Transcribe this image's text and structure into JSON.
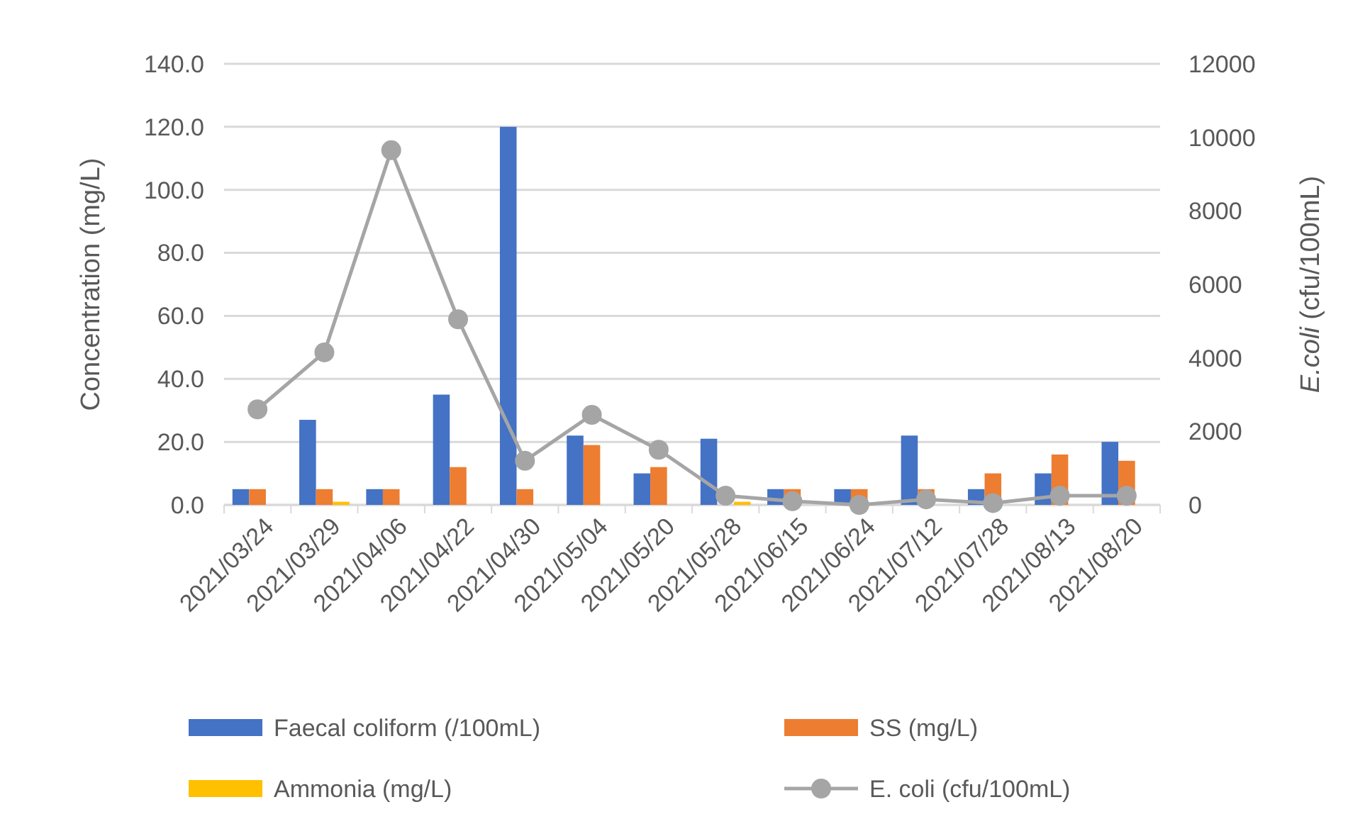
{
  "chart_data": {
    "type": "bar",
    "categories": [
      "2021/03/24",
      "2021/03/29",
      "2021/04/06",
      "2021/04/22",
      "2021/04/30",
      "2021/05/04",
      "2021/05/20",
      "2021/05/28",
      "2021/06/15",
      "2021/06/24",
      "2021/07/12",
      "2021/07/28",
      "2021/08/13",
      "2021/08/20"
    ],
    "ylabel": "Concentration (mg/L)",
    "y2label": "E.coli (cfu/100mL)",
    "ylim": [
      0,
      140
    ],
    "yticks": [
      {
        "value": 0,
        "label": "0.0"
      },
      {
        "value": 20,
        "label": "20.0"
      },
      {
        "value": 40,
        "label": "40.0"
      },
      {
        "value": 60,
        "label": "60.0"
      },
      {
        "value": 80,
        "label": "80.0"
      },
      {
        "value": 100,
        "label": "100.0"
      },
      {
        "value": 120,
        "label": "120.0"
      },
      {
        "value": 140,
        "label": "140.0"
      }
    ],
    "y2lim": [
      0,
      12000
    ],
    "y2ticks": [
      0,
      2000,
      4000,
      6000,
      8000,
      10000,
      12000
    ],
    "grid": "y",
    "legend": "bottom",
    "marker": "circle",
    "series": [
      {
        "name": "Faecal coliform (/100mL)",
        "color": "#4472c4",
        "values": [
          5,
          27,
          5,
          35,
          120,
          22,
          10,
          21,
          5,
          5,
          22,
          5,
          10,
          20
        ]
      },
      {
        "name": "SS (mg/L)",
        "color": "#ed7d31",
        "values": [
          5,
          5,
          5,
          12,
          5,
          19,
          12,
          null,
          5,
          5,
          5,
          10,
          16,
          14
        ]
      },
      {
        "name": "Ammonia (mg/L)",
        "color": "#ffc000",
        "values": [
          null,
          1,
          null,
          null,
          null,
          null,
          null,
          1,
          null,
          null,
          null,
          null,
          null,
          null
        ]
      },
      {
        "name": "E. coli (cfu/100mL)",
        "color": "#a5a5a5",
        "type": "line",
        "axis": "y2",
        "values": [
          2600,
          4150,
          9650,
          5050,
          1200,
          2450,
          1500,
          250,
          100,
          0,
          150,
          50,
          250,
          250
        ]
      }
    ]
  }
}
